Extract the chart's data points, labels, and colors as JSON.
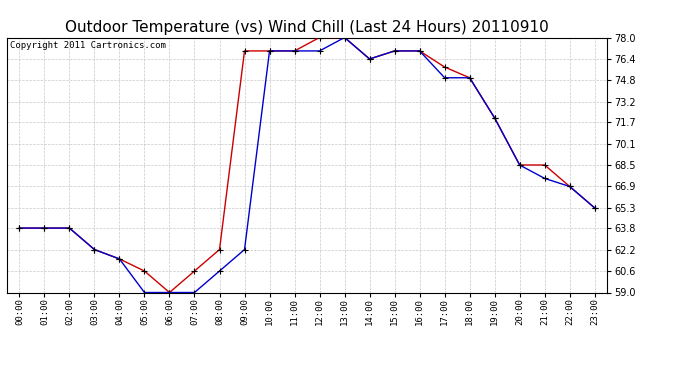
{
  "title": "Outdoor Temperature (vs) Wind Chill (Last 24 Hours) 20110910",
  "copyright": "Copyright 2011 Cartronics.com",
  "x_labels": [
    "00:00",
    "01:00",
    "02:00",
    "03:00",
    "04:00",
    "05:00",
    "06:00",
    "07:00",
    "08:00",
    "09:00",
    "10:00",
    "11:00",
    "12:00",
    "13:00",
    "14:00",
    "15:00",
    "16:00",
    "17:00",
    "18:00",
    "19:00",
    "20:00",
    "21:00",
    "22:00",
    "23:00"
  ],
  "temp_red": [
    63.8,
    63.8,
    63.8,
    62.2,
    61.5,
    60.6,
    59.0,
    60.6,
    62.2,
    77.0,
    77.0,
    77.0,
    78.0,
    78.0,
    76.4,
    77.0,
    77.0,
    75.8,
    75.0,
    72.0,
    68.5,
    68.5,
    66.9,
    65.3
  ],
  "temp_blue": [
    63.8,
    63.8,
    63.8,
    62.2,
    61.5,
    59.0,
    59.0,
    59.0,
    60.6,
    62.2,
    77.0,
    77.0,
    77.0,
    78.0,
    76.4,
    77.0,
    77.0,
    75.0,
    75.0,
    72.0,
    68.5,
    67.5,
    66.9,
    65.3
  ],
  "ylim_min": 59.0,
  "ylim_max": 78.0,
  "yticks": [
    59.0,
    60.6,
    62.2,
    63.8,
    65.3,
    66.9,
    68.5,
    70.1,
    71.7,
    73.2,
    74.8,
    76.4,
    78.0
  ],
  "red_color": "#cc0000",
  "blue_color": "#0000cc",
  "marker": "+",
  "marker_color": "#000000",
  "bg_color": "#ffffff",
  "grid_color": "#bbbbbb",
  "title_fontsize": 11,
  "copyright_fontsize": 6.5,
  "fig_width": 6.9,
  "fig_height": 3.75,
  "dpi": 100
}
